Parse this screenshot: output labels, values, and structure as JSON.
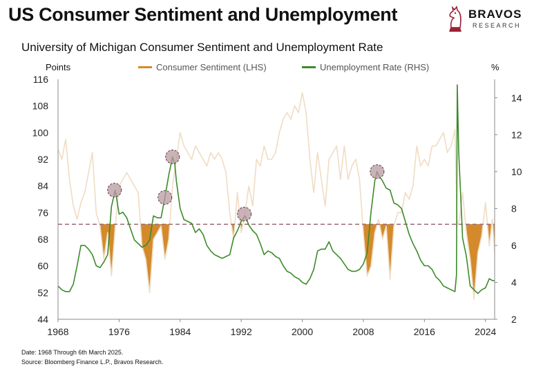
{
  "header": {
    "title": "US Consumer Sentiment and Unemployment",
    "subtitle": "University of Michigan Consumer Sentiment and Unemployment Rate"
  },
  "logo": {
    "name": "BRAVOS",
    "tagline": "RESEARCH",
    "icon": "knight-chess-piece-icon"
  },
  "footnotes": {
    "date": "Date: 1968 Through 6th March 2025.",
    "source": "Source: Bloomberg Finance L.P., Bravos Research."
  },
  "chart_data": {
    "type": "line",
    "title": "University of Michigan Consumer Sentiment and Unemployment Rate",
    "left_axis_label": "Points",
    "right_axis_label": "%",
    "x_range": [
      1968,
      2025.2
    ],
    "x_ticks": [
      1968,
      1976,
      1984,
      1992,
      2000,
      2008,
      2016,
      2024
    ],
    "y_left_range": [
      44,
      116
    ],
    "y_left_ticks": [
      44,
      52,
      60,
      68,
      76,
      84,
      92,
      100,
      108,
      116
    ],
    "y_right_range": [
      2,
      15
    ],
    "y_right_ticks": [
      2,
      4,
      6,
      8,
      10,
      12,
      14
    ],
    "threshold_line": {
      "axis": "left",
      "value": 72.5,
      "color": "#9a6a72"
    },
    "below_threshold_fill_color": "#d48a2a",
    "legend": "top-center",
    "grid": false,
    "series": [
      {
        "name": "Consumer Sentiment (LHS)",
        "axis": "left",
        "color": "#f0dcc3",
        "points": [
          [
            1968,
            95
          ],
          [
            1968.5,
            92
          ],
          [
            1969,
            98
          ],
          [
            1969.5,
            86
          ],
          [
            1970,
            78
          ],
          [
            1970.5,
            74
          ],
          [
            1971,
            79
          ],
          [
            1971.5,
            82
          ],
          [
            1972,
            88
          ],
          [
            1972.5,
            94
          ],
          [
            1973,
            76
          ],
          [
            1973.5,
            72
          ],
          [
            1974,
            62
          ],
          [
            1974.5,
            70
          ],
          [
            1975,
            57
          ],
          [
            1975.5,
            72
          ],
          [
            1976,
            84
          ],
          [
            1976.5,
            86
          ],
          [
            1977,
            88
          ],
          [
            1977.5,
            86
          ],
          [
            1978,
            84
          ],
          [
            1978.5,
            82
          ],
          [
            1979,
            66
          ],
          [
            1979.5,
            62
          ],
          [
            1980,
            52
          ],
          [
            1980.5,
            68
          ],
          [
            1981,
            70
          ],
          [
            1981.5,
            72
          ],
          [
            1982,
            62
          ],
          [
            1982.5,
            68
          ],
          [
            1983,
            84
          ],
          [
            1983.5,
            92
          ],
          [
            1984,
            100
          ],
          [
            1984.5,
            96
          ],
          [
            1985,
            94
          ],
          [
            1985.5,
            92
          ],
          [
            1986,
            96
          ],
          [
            1986.5,
            94
          ],
          [
            1987,
            92
          ],
          [
            1987.5,
            90
          ],
          [
            1988,
            94
          ],
          [
            1988.5,
            92
          ],
          [
            1989,
            94
          ],
          [
            1989.5,
            92
          ],
          [
            1990,
            88
          ],
          [
            1990.5,
            76
          ],
          [
            1991,
            68
          ],
          [
            1991.5,
            82
          ],
          [
            1992,
            70
          ],
          [
            1992.5,
            76
          ],
          [
            1993,
            84
          ],
          [
            1993.5,
            78
          ],
          [
            1994,
            92
          ],
          [
            1994.5,
            90
          ],
          [
            1995,
            96
          ],
          [
            1995.5,
            92
          ],
          [
            1996,
            92
          ],
          [
            1996.5,
            94
          ],
          [
            1997,
            100
          ],
          [
            1997.5,
            104
          ],
          [
            1998,
            106
          ],
          [
            1998.5,
            104
          ],
          [
            1999,
            108
          ],
          [
            1999.5,
            106
          ],
          [
            2000,
            112
          ],
          [
            2000.5,
            106
          ],
          [
            2001,
            92
          ],
          [
            2001.5,
            82
          ],
          [
            2002,
            94
          ],
          [
            2002.5,
            86
          ],
          [
            2003,
            78
          ],
          [
            2003.5,
            92
          ],
          [
            2004,
            94
          ],
          [
            2004.5,
            96
          ],
          [
            2005,
            86
          ],
          [
            2005.5,
            96
          ],
          [
            2006,
            86
          ],
          [
            2006.5,
            90
          ],
          [
            2007,
            92
          ],
          [
            2007.5,
            86
          ],
          [
            2008,
            70
          ],
          [
            2008.5,
            57
          ],
          [
            2009,
            60
          ],
          [
            2009.5,
            70
          ],
          [
            2010,
            74
          ],
          [
            2010.5,
            68
          ],
          [
            2011,
            72
          ],
          [
            2011.5,
            56
          ],
          [
            2012,
            72
          ],
          [
            2012.5,
            76
          ],
          [
            2013,
            76
          ],
          [
            2013.5,
            82
          ],
          [
            2014,
            80
          ],
          [
            2014.5,
            84
          ],
          [
            2015,
            96
          ],
          [
            2015.5,
            90
          ],
          [
            2016,
            92
          ],
          [
            2016.5,
            90
          ],
          [
            2017,
            96
          ],
          [
            2017.5,
            96
          ],
          [
            2018,
            98
          ],
          [
            2018.5,
            100
          ],
          [
            2019,
            94
          ],
          [
            2019.5,
            96
          ],
          [
            2020,
            101
          ],
          [
            2020.3,
            72
          ],
          [
            2020.6,
            74
          ],
          [
            2021,
            82
          ],
          [
            2021.5,
            70
          ],
          [
            2022,
            62
          ],
          [
            2022.5,
            50
          ],
          [
            2023,
            64
          ],
          [
            2023.5,
            69
          ],
          [
            2024,
            79
          ],
          [
            2024.5,
            66
          ],
          [
            2024.9,
            74
          ],
          [
            2025.2,
            64
          ]
        ]
      },
      {
        "name": "Unemployment Rate (RHS)",
        "axis": "right",
        "color": "#3c8a2a",
        "points": [
          [
            1968,
            3.8
          ],
          [
            1968.5,
            3.6
          ],
          [
            1969,
            3.5
          ],
          [
            1969.5,
            3.5
          ],
          [
            1970,
            3.9
          ],
          [
            1970.5,
            4.9
          ],
          [
            1971,
            6.0
          ],
          [
            1971.5,
            6.0
          ],
          [
            1972,
            5.8
          ],
          [
            1972.5,
            5.5
          ],
          [
            1973,
            4.9
          ],
          [
            1973.5,
            4.8
          ],
          [
            1974,
            5.1
          ],
          [
            1974.5,
            5.5
          ],
          [
            1975,
            8.1
          ],
          [
            1975.5,
            9.0
          ],
          [
            1976,
            7.7
          ],
          [
            1976.5,
            7.8
          ],
          [
            1977,
            7.5
          ],
          [
            1977.5,
            6.9
          ],
          [
            1978,
            6.3
          ],
          [
            1978.5,
            6.1
          ],
          [
            1979,
            5.9
          ],
          [
            1979.5,
            6.0
          ],
          [
            1980,
            6.3
          ],
          [
            1980.5,
            7.6
          ],
          [
            1981,
            7.5
          ],
          [
            1981.5,
            7.5
          ],
          [
            1982,
            8.6
          ],
          [
            1982.5,
            9.8
          ],
          [
            1983,
            10.8
          ],
          [
            1983.3,
            10.4
          ],
          [
            1983.5,
            9.5
          ],
          [
            1984,
            8.0
          ],
          [
            1984.5,
            7.4
          ],
          [
            1985,
            7.3
          ],
          [
            1985.5,
            7.2
          ],
          [
            1986,
            6.7
          ],
          [
            1986.5,
            6.9
          ],
          [
            1987,
            6.6
          ],
          [
            1987.5,
            6.0
          ],
          [
            1988,
            5.7
          ],
          [
            1988.5,
            5.5
          ],
          [
            1989,
            5.4
          ],
          [
            1989.5,
            5.3
          ],
          [
            1990,
            5.4
          ],
          [
            1990.5,
            5.5
          ],
          [
            1991,
            6.4
          ],
          [
            1991.5,
            6.8
          ],
          [
            1992,
            7.3
          ],
          [
            1992.5,
            7.6
          ],
          [
            1993,
            7.1
          ],
          [
            1993.5,
            6.8
          ],
          [
            1994,
            6.6
          ],
          [
            1994.5,
            6.1
          ],
          [
            1995,
            5.5
          ],
          [
            1995.5,
            5.7
          ],
          [
            1996,
            5.6
          ],
          [
            1996.5,
            5.4
          ],
          [
            1997,
            5.3
          ],
          [
            1997.5,
            4.9
          ],
          [
            1998,
            4.6
          ],
          [
            1998.5,
            4.5
          ],
          [
            1999,
            4.3
          ],
          [
            1999.5,
            4.2
          ],
          [
            2000,
            4.0
          ],
          [
            2000.5,
            3.9
          ],
          [
            2001,
            4.2
          ],
          [
            2001.5,
            4.7
          ],
          [
            2002,
            5.7
          ],
          [
            2002.5,
            5.8
          ],
          [
            2003,
            5.8
          ],
          [
            2003.5,
            6.2
          ],
          [
            2004,
            5.7
          ],
          [
            2004.5,
            5.5
          ],
          [
            2005,
            5.3
          ],
          [
            2005.5,
            5.0
          ],
          [
            2006,
            4.7
          ],
          [
            2006.5,
            4.6
          ],
          [
            2007,
            4.6
          ],
          [
            2007.5,
            4.7
          ],
          [
            2008,
            5.0
          ],
          [
            2008.5,
            5.6
          ],
          [
            2009,
            7.8
          ],
          [
            2009.5,
            9.5
          ],
          [
            2009.8,
            10.0
          ],
          [
            2010,
            9.8
          ],
          [
            2010.5,
            9.5
          ],
          [
            2011,
            9.1
          ],
          [
            2011.5,
            9.0
          ],
          [
            2012,
            8.3
          ],
          [
            2012.5,
            8.2
          ],
          [
            2013,
            8.0
          ],
          [
            2013.5,
            7.3
          ],
          [
            2014,
            6.6
          ],
          [
            2014.5,
            6.1
          ],
          [
            2015,
            5.7
          ],
          [
            2015.5,
            5.2
          ],
          [
            2016,
            4.9
          ],
          [
            2016.5,
            4.9
          ],
          [
            2017,
            4.7
          ],
          [
            2017.5,
            4.3
          ],
          [
            2018,
            4.1
          ],
          [
            2018.5,
            3.8
          ],
          [
            2019,
            3.7
          ],
          [
            2019.5,
            3.6
          ],
          [
            2020,
            3.5
          ],
          [
            2020.2,
            4.4
          ],
          [
            2020.3,
            14.7
          ],
          [
            2020.5,
            11.0
          ],
          [
            2021,
            6.4
          ],
          [
            2021.5,
            5.4
          ],
          [
            2022,
            3.8
          ],
          [
            2022.5,
            3.6
          ],
          [
            2023,
            3.4
          ],
          [
            2023.5,
            3.6
          ],
          [
            2024,
            3.7
          ],
          [
            2024.5,
            4.2
          ],
          [
            2024.9,
            4.1
          ],
          [
            2025.2,
            4.1
          ]
        ]
      }
    ],
    "peak_markers": [
      {
        "series": "Unemployment Rate (RHS)",
        "x": 1975.4,
        "y": 9.0
      },
      {
        "series": "Unemployment Rate (RHS)",
        "x": 1983.0,
        "y": 10.8
      },
      {
        "series": "Unemployment Rate (RHS)",
        "x": 1982.0,
        "y": 8.6,
        "note": ""
      },
      {
        "series": "Unemployment Rate (RHS)",
        "x": 1992.4,
        "y": 7.7
      },
      {
        "series": "Unemployment Rate (RHS)",
        "x": 2009.8,
        "y": 10.0
      }
    ]
  }
}
